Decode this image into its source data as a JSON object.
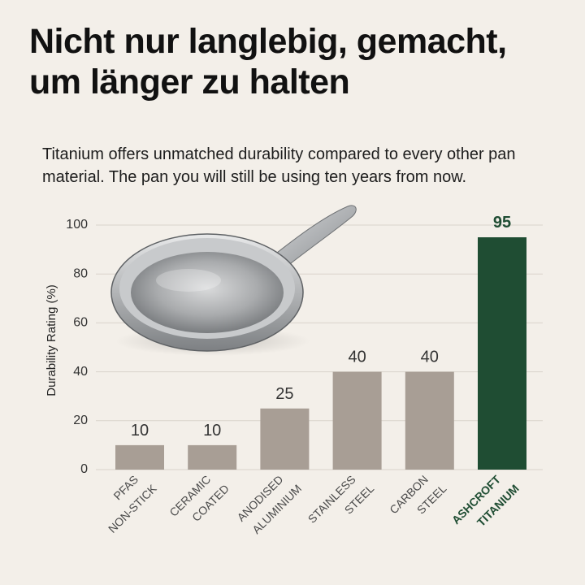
{
  "headline": {
    "line1": "Nicht nur langlebig, gemacht,",
    "line2": "um länger zu halten"
  },
  "subhead": "Titanium offers unmatched durability compared to every other pan material. The pan you will still be using ten years from now.",
  "colors": {
    "background": "#f3efe9",
    "bar": "#a89e95",
    "highlight": "#1f4d33",
    "grid": "#d9d3cb"
  },
  "image": {
    "icon": "stainless-steel-frying-pan-icon"
  },
  "chart_data": {
    "type": "bar",
    "categories": [
      [
        "PFAS",
        "NON-STICK"
      ],
      [
        "CERAMIC",
        "COATED"
      ],
      [
        "ANODISED",
        "ALUMINIUM"
      ],
      [
        "STAINLESS",
        "STEEL"
      ],
      [
        "CARBON",
        "STEEL"
      ],
      [
        "ASHCROFT",
        "TITANIUM"
      ]
    ],
    "values": [
      10,
      10,
      25,
      40,
      40,
      95
    ],
    "value_labels": [
      "10",
      "10",
      "25",
      "40",
      "40",
      "95"
    ],
    "highlight_index": 5,
    "ylabel": "Durability Rating (%)",
    "xlabel": "",
    "ylim": [
      0,
      100
    ],
    "yticks": [
      0,
      20,
      40,
      60,
      80,
      100
    ],
    "grid": true,
    "legend": "none"
  }
}
